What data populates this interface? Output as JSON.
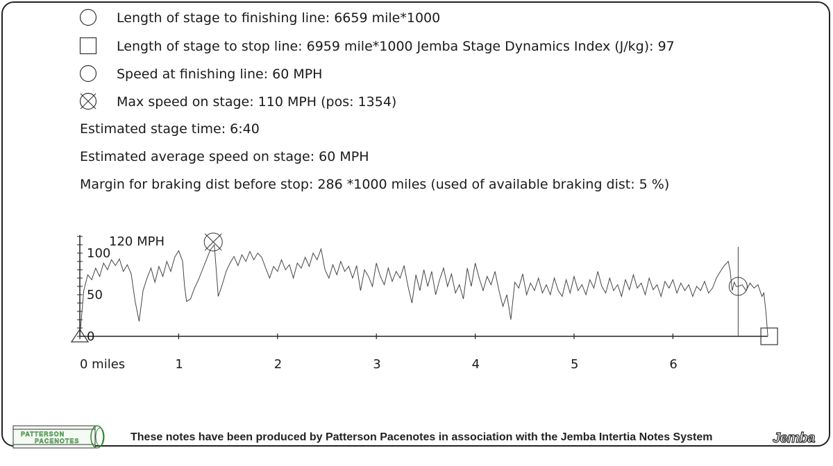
{
  "info": {
    "finish_length": "Length of stage to finishing line: 6659 mile*1000",
    "stop_length": "Length of stage to stop line: 6959 mile*1000 Jemba Stage Dynamics Index (J/kg): 97",
    "finish_speed": "Speed at finishing line: 60 MPH",
    "max_speed": "Max speed on stage: 110 MPH (pos: 1354)",
    "stage_time": "Estimated stage time: 6:40",
    "avg_speed": "Estimated average speed on stage: 60 MPH",
    "braking_margin": "Margin for braking dist before stop: 286 *1000 miles (used of available braking dist: 5 %)"
  },
  "footer": {
    "text": "These notes have been produced by Patterson Pacenotes in association with the Jemba Intertia Notes System",
    "logo_left_line1": "PATTERSON",
    "logo_left_line2": "PACENOTES",
    "logo_right": "Jemba"
  },
  "chart_data": {
    "type": "line",
    "title": "",
    "xlabel": "",
    "ylabel": "",
    "y_unit_label": "120 MPH",
    "xlim": [
      0,
      6.96
    ],
    "ylim": [
      0,
      120
    ],
    "x_ticks": [
      0,
      1,
      2,
      3,
      4,
      5,
      6
    ],
    "x_tick_labels": [
      "0 miles",
      "1",
      "2",
      "3",
      "4",
      "5",
      "6"
    ],
    "y_ticks": [
      0,
      50,
      100
    ],
    "y_tick_labels": [
      "0",
      "50",
      "100"
    ],
    "markers": {
      "start": {
        "x": 0,
        "y": 0,
        "shape": "triangle"
      },
      "max_speed": {
        "x": 1.35,
        "y": 110,
        "shape": "crossed-circle"
      },
      "finish": {
        "x": 6.66,
        "y": 60,
        "shape": "circle"
      },
      "stop": {
        "x": 6.96,
        "y": 0,
        "shape": "square"
      }
    },
    "series": [
      {
        "points": [
          [
            0.0,
            0
          ],
          [
            0.04,
            55
          ],
          [
            0.08,
            74
          ],
          [
            0.12,
            68
          ],
          [
            0.16,
            82
          ],
          [
            0.2,
            72
          ],
          [
            0.24,
            88
          ],
          [
            0.28,
            80
          ],
          [
            0.32,
            92
          ],
          [
            0.36,
            85
          ],
          [
            0.4,
            93
          ],
          [
            0.44,
            78
          ],
          [
            0.48,
            86
          ],
          [
            0.52,
            75
          ],
          [
            0.56,
            42
          ],
          [
            0.6,
            18
          ],
          [
            0.64,
            55
          ],
          [
            0.68,
            70
          ],
          [
            0.72,
            82
          ],
          [
            0.76,
            65
          ],
          [
            0.8,
            84
          ],
          [
            0.84,
            72
          ],
          [
            0.88,
            90
          ],
          [
            0.92,
            78
          ],
          [
            0.96,
            95
          ],
          [
            1.0,
            103
          ],
          [
            1.04,
            90
          ],
          [
            1.06,
            60
          ],
          [
            1.08,
            42
          ],
          [
            1.12,
            45
          ],
          [
            1.16,
            58
          ],
          [
            1.2,
            68
          ],
          [
            1.24,
            80
          ],
          [
            1.28,
            92
          ],
          [
            1.32,
            104
          ],
          [
            1.36,
            110
          ],
          [
            1.38,
            80
          ],
          [
            1.4,
            48
          ],
          [
            1.44,
            62
          ],
          [
            1.48,
            78
          ],
          [
            1.52,
            88
          ],
          [
            1.56,
            96
          ],
          [
            1.6,
            85
          ],
          [
            1.64,
            98
          ],
          [
            1.68,
            90
          ],
          [
            1.72,
            102
          ],
          [
            1.76,
            92
          ],
          [
            1.8,
            100
          ],
          [
            1.84,
            95
          ],
          [
            1.88,
            82
          ],
          [
            1.92,
            70
          ],
          [
            1.96,
            84
          ],
          [
            2.0,
            78
          ],
          [
            2.04,
            92
          ],
          [
            2.08,
            80
          ],
          [
            2.12,
            86
          ],
          [
            2.16,
            70
          ],
          [
            2.2,
            88
          ],
          [
            2.24,
            82
          ],
          [
            2.28,
            95
          ],
          [
            2.32,
            84
          ],
          [
            2.36,
            100
          ],
          [
            2.4,
            92
          ],
          [
            2.44,
            105
          ],
          [
            2.48,
            80
          ],
          [
            2.52,
            70
          ],
          [
            2.56,
            86
          ],
          [
            2.6,
            74
          ],
          [
            2.64,
            90
          ],
          [
            2.68,
            78
          ],
          [
            2.72,
            84
          ],
          [
            2.76,
            70
          ],
          [
            2.8,
            85
          ],
          [
            2.84,
            55
          ],
          [
            2.88,
            80
          ],
          [
            2.92,
            72
          ],
          [
            2.96,
            60
          ],
          [
            3.0,
            88
          ],
          [
            3.04,
            72
          ],
          [
            3.08,
            62
          ],
          [
            3.12,
            82
          ],
          [
            3.16,
            66
          ],
          [
            3.2,
            78
          ],
          [
            3.24,
            70
          ],
          [
            3.28,
            85
          ],
          [
            3.32,
            60
          ],
          [
            3.36,
            40
          ],
          [
            3.4,
            74
          ],
          [
            3.44,
            55
          ],
          [
            3.48,
            80
          ],
          [
            3.52,
            60
          ],
          [
            3.56,
            78
          ],
          [
            3.6,
            50
          ],
          [
            3.64,
            68
          ],
          [
            3.68,
            82
          ],
          [
            3.72,
            60
          ],
          [
            3.76,
            75
          ],
          [
            3.8,
            52
          ],
          [
            3.84,
            62
          ],
          [
            3.88,
            45
          ],
          [
            3.92,
            82
          ],
          [
            3.96,
            60
          ],
          [
            4.0,
            88
          ],
          [
            4.04,
            70
          ],
          [
            4.08,
            55
          ],
          [
            4.12,
            72
          ],
          [
            4.16,
            62
          ],
          [
            4.2,
            78
          ],
          [
            4.24,
            55
          ],
          [
            4.28,
            36
          ],
          [
            4.32,
            50
          ],
          [
            4.36,
            20
          ],
          [
            4.4,
            65
          ],
          [
            4.44,
            58
          ],
          [
            4.48,
            75
          ],
          [
            4.52,
            50
          ],
          [
            4.56,
            64
          ],
          [
            4.6,
            55
          ],
          [
            4.64,
            70
          ],
          [
            4.68,
            52
          ],
          [
            4.72,
            62
          ],
          [
            4.76,
            50
          ],
          [
            4.8,
            70
          ],
          [
            4.84,
            55
          ],
          [
            4.88,
            48
          ],
          [
            4.92,
            68
          ],
          [
            4.96,
            52
          ],
          [
            5.0,
            72
          ],
          [
            5.04,
            55
          ],
          [
            5.08,
            62
          ],
          [
            5.12,
            50
          ],
          [
            5.16,
            68
          ],
          [
            5.2,
            58
          ],
          [
            5.24,
            78
          ],
          [
            5.28,
            60
          ],
          [
            5.32,
            52
          ],
          [
            5.36,
            70
          ],
          [
            5.4,
            55
          ],
          [
            5.44,
            62
          ],
          [
            5.48,
            48
          ],
          [
            5.52,
            68
          ],
          [
            5.56,
            56
          ],
          [
            5.6,
            74
          ],
          [
            5.64,
            58
          ],
          [
            5.68,
            64
          ],
          [
            5.72,
            50
          ],
          [
            5.76,
            70
          ],
          [
            5.8,
            56
          ],
          [
            5.84,
            62
          ],
          [
            5.88,
            48
          ],
          [
            5.92,
            66
          ],
          [
            5.96,
            58
          ],
          [
            6.0,
            68
          ],
          [
            6.04,
            52
          ],
          [
            6.08,
            64
          ],
          [
            6.12,
            55
          ],
          [
            6.16,
            62
          ],
          [
            6.2,
            48
          ],
          [
            6.24,
            60
          ],
          [
            6.28,
            55
          ],
          [
            6.32,
            66
          ],
          [
            6.36,
            52
          ],
          [
            6.4,
            58
          ],
          [
            6.44,
            70
          ],
          [
            6.48,
            78
          ],
          [
            6.52,
            85
          ],
          [
            6.56,
            90
          ],
          [
            6.58,
            78
          ],
          [
            6.6,
            55
          ],
          [
            6.62,
            65
          ],
          [
            6.64,
            60
          ],
          [
            6.66,
            60
          ],
          [
            6.7,
            62
          ],
          [
            6.74,
            55
          ],
          [
            6.78,
            64
          ],
          [
            6.82,
            58
          ],
          [
            6.86,
            62
          ],
          [
            6.9,
            48
          ],
          [
            6.92,
            52
          ],
          [
            6.94,
            30
          ],
          [
            6.96,
            0
          ]
        ]
      }
    ]
  }
}
